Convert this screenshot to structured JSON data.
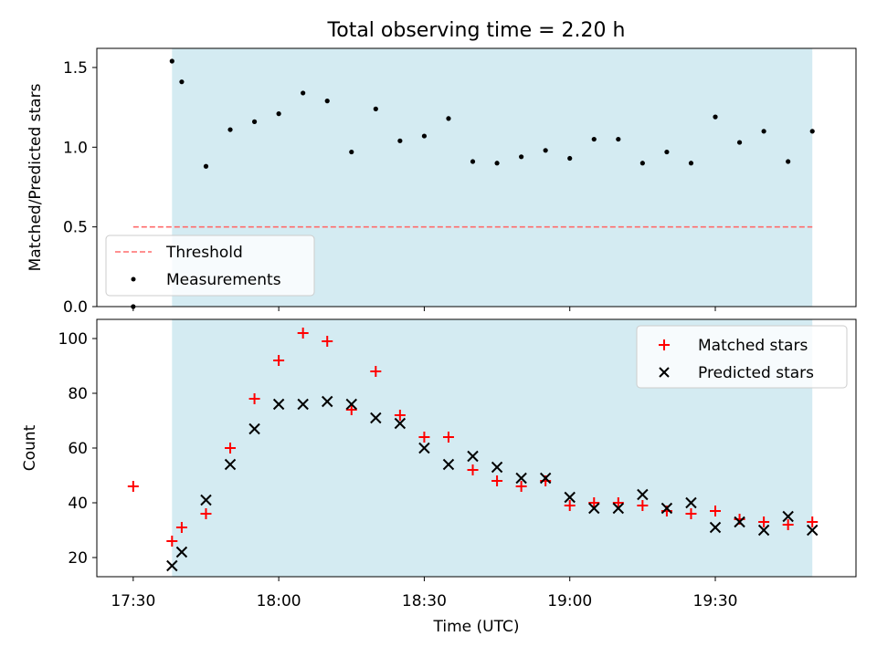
{
  "chart_data": [
    {
      "type": "scatter",
      "title": "Total observing time = 2.20 h",
      "ylabel": "Matched/Predicted stars",
      "xlim": [
        "17:22:30",
        "19:59:00"
      ],
      "ylim": [
        0,
        1.62
      ],
      "yticks": [
        0.0,
        0.5,
        1.0,
        1.5
      ],
      "ytick_labels": [
        "0.0",
        "0.5",
        "1.0",
        "1.5"
      ],
      "observing_window": [
        "17:38",
        "19:50"
      ],
      "threshold": {
        "value": 0.5,
        "label": "Threshold",
        "color": "#ff6b6b",
        "style": "dashed",
        "x_range": [
          "17:30",
          "19:50"
        ]
      },
      "legend": {
        "position": "lower-left",
        "entries": [
          "Threshold",
          "Measurements"
        ]
      },
      "series": [
        {
          "name": "Measurements",
          "marker": "dot",
          "color": "#000000",
          "points": [
            [
              "17:30",
              0.0
            ],
            [
              "17:38",
              1.54
            ],
            [
              "17:40",
              1.41
            ],
            [
              "17:45",
              0.88
            ],
            [
              "17:50",
              1.11
            ],
            [
              "17:55",
              1.16
            ],
            [
              "18:00",
              1.21
            ],
            [
              "18:05",
              1.34
            ],
            [
              "18:10",
              1.29
            ],
            [
              "18:15",
              0.97
            ],
            [
              "18:20",
              1.24
            ],
            [
              "18:25",
              1.04
            ],
            [
              "18:30",
              1.07
            ],
            [
              "18:35",
              1.18
            ],
            [
              "18:40",
              0.91
            ],
            [
              "18:45",
              0.9
            ],
            [
              "18:50",
              0.94
            ],
            [
              "18:55",
              0.98
            ],
            [
              "19:00",
              0.93
            ],
            [
              "19:05",
              1.05
            ],
            [
              "19:10",
              1.05
            ],
            [
              "19:15",
              0.9
            ],
            [
              "19:20",
              0.97
            ],
            [
              "19:25",
              0.9
            ],
            [
              "19:30",
              1.19
            ],
            [
              "19:35",
              1.03
            ],
            [
              "19:40",
              1.1
            ],
            [
              "19:45",
              0.91
            ],
            [
              "19:50",
              1.1
            ]
          ]
        }
      ]
    },
    {
      "type": "scatter",
      "xlabel": "Time (UTC)",
      "ylabel": "Count",
      "xlim": [
        "17:22:30",
        "19:59:00"
      ],
      "ylim": [
        13,
        107
      ],
      "yticks": [
        20,
        40,
        60,
        80,
        100
      ],
      "ytick_labels": [
        "20",
        "40",
        "60",
        "80",
        "100"
      ],
      "xticks": [
        "17:30",
        "18:00",
        "18:30",
        "19:00",
        "19:30"
      ],
      "xtick_labels": [
        "17:30",
        "18:00",
        "18:30",
        "19:00",
        "19:30"
      ],
      "observing_window": [
        "17:38",
        "19:50"
      ],
      "legend": {
        "position": "top-right",
        "entries": [
          "Matched stars",
          "Predicted stars"
        ]
      },
      "series": [
        {
          "name": "Matched stars",
          "marker": "plus",
          "color": "#ff0000",
          "points": [
            [
              "17:30",
              46
            ],
            [
              "17:38",
              26
            ],
            [
              "17:40",
              31
            ],
            [
              "17:45",
              36
            ],
            [
              "17:50",
              60
            ],
            [
              "17:55",
              78
            ],
            [
              "18:00",
              92
            ],
            [
              "18:05",
              102
            ],
            [
              "18:10",
              99
            ],
            [
              "18:15",
              74
            ],
            [
              "18:20",
              88
            ],
            [
              "18:25",
              72
            ],
            [
              "18:30",
              64
            ],
            [
              "18:35",
              64
            ],
            [
              "18:40",
              52
            ],
            [
              "18:45",
              48
            ],
            [
              "18:50",
              46
            ],
            [
              "18:55",
              48
            ],
            [
              "19:00",
              39
            ],
            [
              "19:05",
              40
            ],
            [
              "19:10",
              40
            ],
            [
              "19:15",
              39
            ],
            [
              "19:20",
              37
            ],
            [
              "19:25",
              36
            ],
            [
              "19:30",
              37
            ],
            [
              "19:35",
              34
            ],
            [
              "19:40",
              33
            ],
            [
              "19:45",
              32
            ],
            [
              "19:50",
              33
            ]
          ]
        },
        {
          "name": "Predicted stars",
          "marker": "x",
          "color": "#000000",
          "points": [
            [
              "17:38",
              17
            ],
            [
              "17:40",
              22
            ],
            [
              "17:45",
              41
            ],
            [
              "17:50",
              54
            ],
            [
              "17:55",
              67
            ],
            [
              "18:00",
              76
            ],
            [
              "18:05",
              76
            ],
            [
              "18:10",
              77
            ],
            [
              "18:15",
              76
            ],
            [
              "18:20",
              71
            ],
            [
              "18:25",
              69
            ],
            [
              "18:30",
              60
            ],
            [
              "18:35",
              54
            ],
            [
              "18:40",
              57
            ],
            [
              "18:45",
              53
            ],
            [
              "18:50",
              49
            ],
            [
              "18:55",
              49
            ],
            [
              "19:00",
              42
            ],
            [
              "19:05",
              38
            ],
            [
              "19:10",
              38
            ],
            [
              "19:15",
              43
            ],
            [
              "19:20",
              38
            ],
            [
              "19:25",
              40
            ],
            [
              "19:30",
              31
            ],
            [
              "19:35",
              33
            ],
            [
              "19:40",
              30
            ],
            [
              "19:45",
              35
            ],
            [
              "19:50",
              30
            ]
          ]
        }
      ]
    }
  ]
}
